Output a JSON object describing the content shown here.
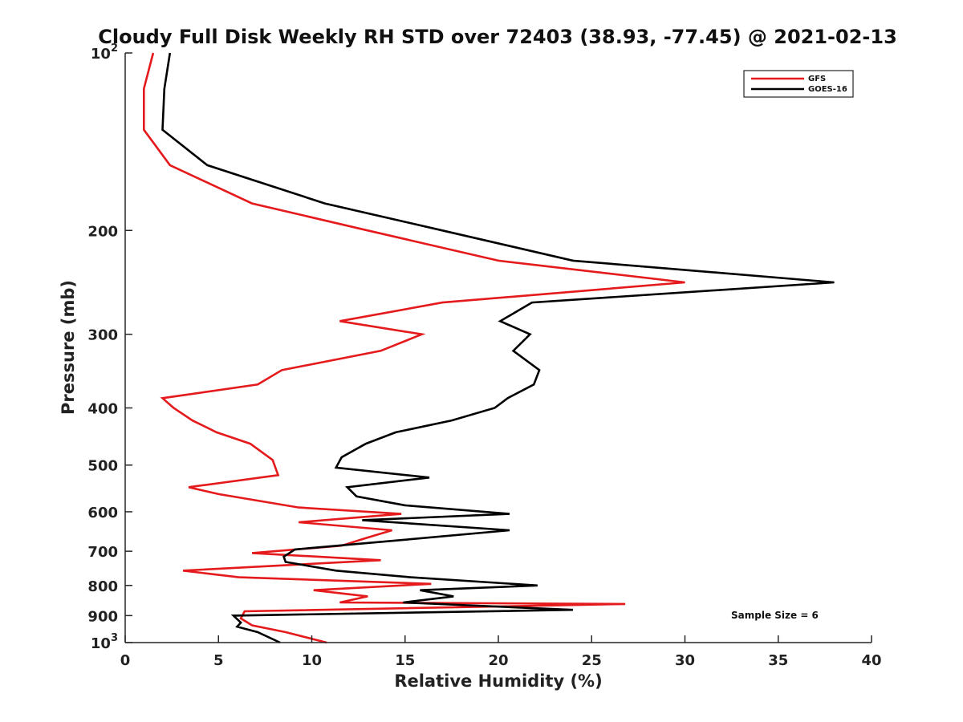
{
  "chart_data": {
    "type": "line",
    "title": "Cloudy Full Disk Weekly RH STD over 72403 (38.93, -77.45) @ 2021-02-13",
    "xlabel": "Relative Humidity (%)",
    "ylabel": "Pressure (mb)",
    "xlim": [
      0,
      40
    ],
    "ylim": [
      100,
      1000
    ],
    "y_scale": "log",
    "y_reversed": true,
    "xticks": [
      0,
      5,
      10,
      15,
      20,
      25,
      30,
      35,
      40
    ],
    "yticks": [
      {
        "value": 100,
        "base": "10",
        "exp": "2"
      },
      {
        "value": 200,
        "label": "200"
      },
      {
        "value": 300,
        "label": "300"
      },
      {
        "value": 400,
        "label": "400"
      },
      {
        "value": 500,
        "label": "500"
      },
      {
        "value": 600,
        "label": "600"
      },
      {
        "value": 700,
        "label": "700"
      },
      {
        "value": 800,
        "label": "800"
      },
      {
        "value": 900,
        "label": "900"
      },
      {
        "value": 1000,
        "base": "10",
        "exp": "3"
      }
    ],
    "grid": false,
    "legend_position": "top-right",
    "annotation": "Sample Size = 6",
    "series": [
      {
        "name": "GFS",
        "color": "#e41a1c",
        "x": [
          1.5,
          1.0,
          1.0,
          2.4,
          6.8,
          13.0,
          20.0,
          30.0,
          17.0,
          11.5,
          15.9,
          13.7,
          8.4,
          7.1,
          2.0,
          2.6,
          3.6,
          4.9,
          6.7,
          7.9,
          8.2,
          3.4,
          5.0,
          9.3,
          14.8,
          9.3,
          14.3,
          12.9,
          11.6,
          6.8,
          13.7,
          3.1,
          6.1,
          16.4,
          10.1,
          13.0,
          11.5,
          26.8,
          6.4,
          6.2,
          6.8,
          8.6,
          10.8
        ],
        "y": [
          100,
          115,
          135,
          155,
          180,
          200,
          225,
          245,
          265,
          285,
          300,
          320,
          345,
          365,
          385,
          400,
          420,
          440,
          460,
          490,
          520,
          545,
          560,
          590,
          605,
          625,
          645,
          665,
          685,
          705,
          725,
          755,
          775,
          795,
          815,
          835,
          855,
          860,
          885,
          910,
          935,
          960,
          1000
        ]
      },
      {
        "name": "GOES-16",
        "color": "#000000",
        "x": [
          2.4,
          2.1,
          2.0,
          4.4,
          10.7,
          17.0,
          24.0,
          38.0,
          21.8,
          20.1,
          21.7,
          20.8,
          22.2,
          21.9,
          20.5,
          19.8,
          17.5,
          14.5,
          12.9,
          11.6,
          11.3,
          16.3,
          11.9,
          12.4,
          15.0,
          20.6,
          12.7,
          20.6,
          14.8,
          9.1,
          8.5,
          8.6,
          11.3,
          15.3,
          22.1,
          15.8,
          17.6,
          14.9,
          24.0,
          5.8,
          6.2,
          6.0,
          7.1,
          8.3
        ],
        "y": [
          100,
          115,
          135,
          155,
          180,
          200,
          225,
          245,
          265,
          285,
          300,
          320,
          345,
          365,
          385,
          400,
          420,
          440,
          460,
          485,
          505,
          525,
          545,
          565,
          585,
          605,
          620,
          645,
          670,
          695,
          715,
          730,
          755,
          775,
          800,
          815,
          835,
          855,
          880,
          900,
          925,
          940,
          960,
          1000
        ]
      }
    ]
  }
}
